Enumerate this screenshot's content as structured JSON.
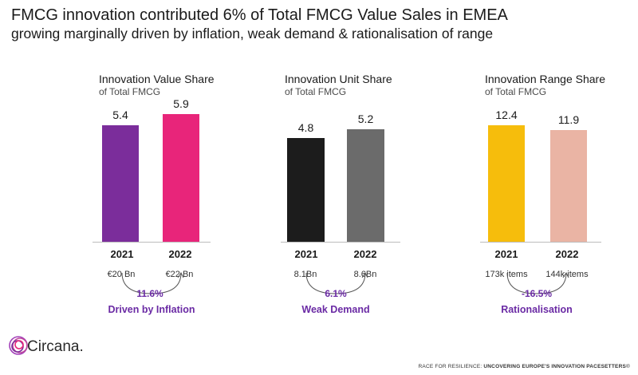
{
  "header": {
    "title": "FMCG innovation contributed 6% of Total FMCG Value Sales in EMEA",
    "subtitle": "growing marginally driven by inflation, weak demand & rationalisation of range"
  },
  "chart_data": [
    {
      "type": "bar",
      "title": "Innovation Value Share",
      "subtitle": "of Total FMCG",
      "categories": [
        "2021",
        "2022"
      ],
      "values": [
        5.4,
        5.9
      ],
      "value_labels": [
        "5.4",
        "5.9"
      ],
      "colors": [
        "#7b2d9b",
        "#e8257a"
      ],
      "absolute_labels": [
        "€20 Bn",
        "€22 Bn"
      ],
      "change_label": "11.6%",
      "driver_label": "Driven by Inflation",
      "ylim": [
        0,
        8.5
      ]
    },
    {
      "type": "bar",
      "title": "Innovation Unit Share",
      "subtitle": "of Total FMCG",
      "categories": [
        "2021",
        "2022"
      ],
      "values": [
        4.8,
        5.2
      ],
      "value_labels": [
        "4.8",
        "5.2"
      ],
      "colors": [
        "#1c1c1c",
        "#6b6b6b"
      ],
      "absolute_labels": [
        "8.1Bn",
        "8.6Bn"
      ],
      "change_label": "6.1%",
      "driver_label": "Weak Demand",
      "ylim": [
        0,
        8.5
      ]
    },
    {
      "type": "bar",
      "title": "Innovation Range Share",
      "subtitle": "of Total FMCG",
      "categories": [
        "2021",
        "2022"
      ],
      "values": [
        12.4,
        11.9
      ],
      "value_labels": [
        "12.4",
        "11.9"
      ],
      "colors": [
        "#f6bd0c",
        "#eab4a4"
      ],
      "absolute_labels": [
        "173k items",
        "144k items"
      ],
      "change_label": "-16.5%",
      "driver_label": "Rationalisation",
      "ylim": [
        0,
        19.5
      ]
    }
  ],
  "brand": {
    "logo_text": "Circana.",
    "logo_icon": "circana-swirl-icon",
    "accent": "#6a2aa4"
  },
  "footer": {
    "prefix": "RACE FOR RESILIENCE: ",
    "bold": "UNCOVERING EUROPE'S INNOVATION PACESETTERS",
    "suffix": "®"
  }
}
